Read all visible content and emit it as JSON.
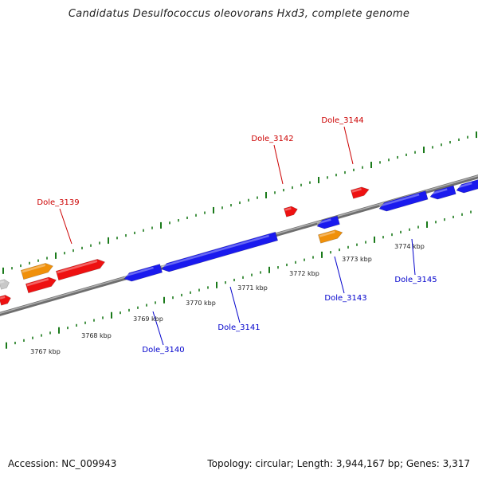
{
  "title": "Candidatus Desulfococcus oleovorans Hxd3, complete genome",
  "colors": {
    "backbone": "#808080",
    "tick": "#1a7a1a",
    "forward_label": "#cc0000",
    "reverse_label": "#0000cc",
    "gene_red": "#ee1111",
    "gene_blue": "#1a1aee",
    "gene_orange": "#f0900a",
    "gene_gray": "#c8c8c8"
  },
  "scale_labels": [
    "3767 kbp",
    "3768 kbp",
    "3769 kbp",
    "3770 kbp",
    "3771 kbp",
    "3772 kbp",
    "3773 kbp",
    "3774 kbp"
  ],
  "gene_labels": [
    {
      "name": "Dole_3139",
      "strand": "forward"
    },
    {
      "name": "Dole_3142",
      "strand": "forward"
    },
    {
      "name": "Dole_3144",
      "strand": "forward"
    },
    {
      "name": "Dole_3140",
      "strand": "reverse"
    },
    {
      "name": "Dole_3141",
      "strand": "reverse"
    },
    {
      "name": "Dole_3143",
      "strand": "reverse"
    },
    {
      "name": "Dole_3145",
      "strand": "reverse"
    }
  ],
  "footer": {
    "accession": "Accession: NC_009943",
    "summary": "Topology: circular; Length: 3,944,167 bp; Genes: 3,317"
  }
}
